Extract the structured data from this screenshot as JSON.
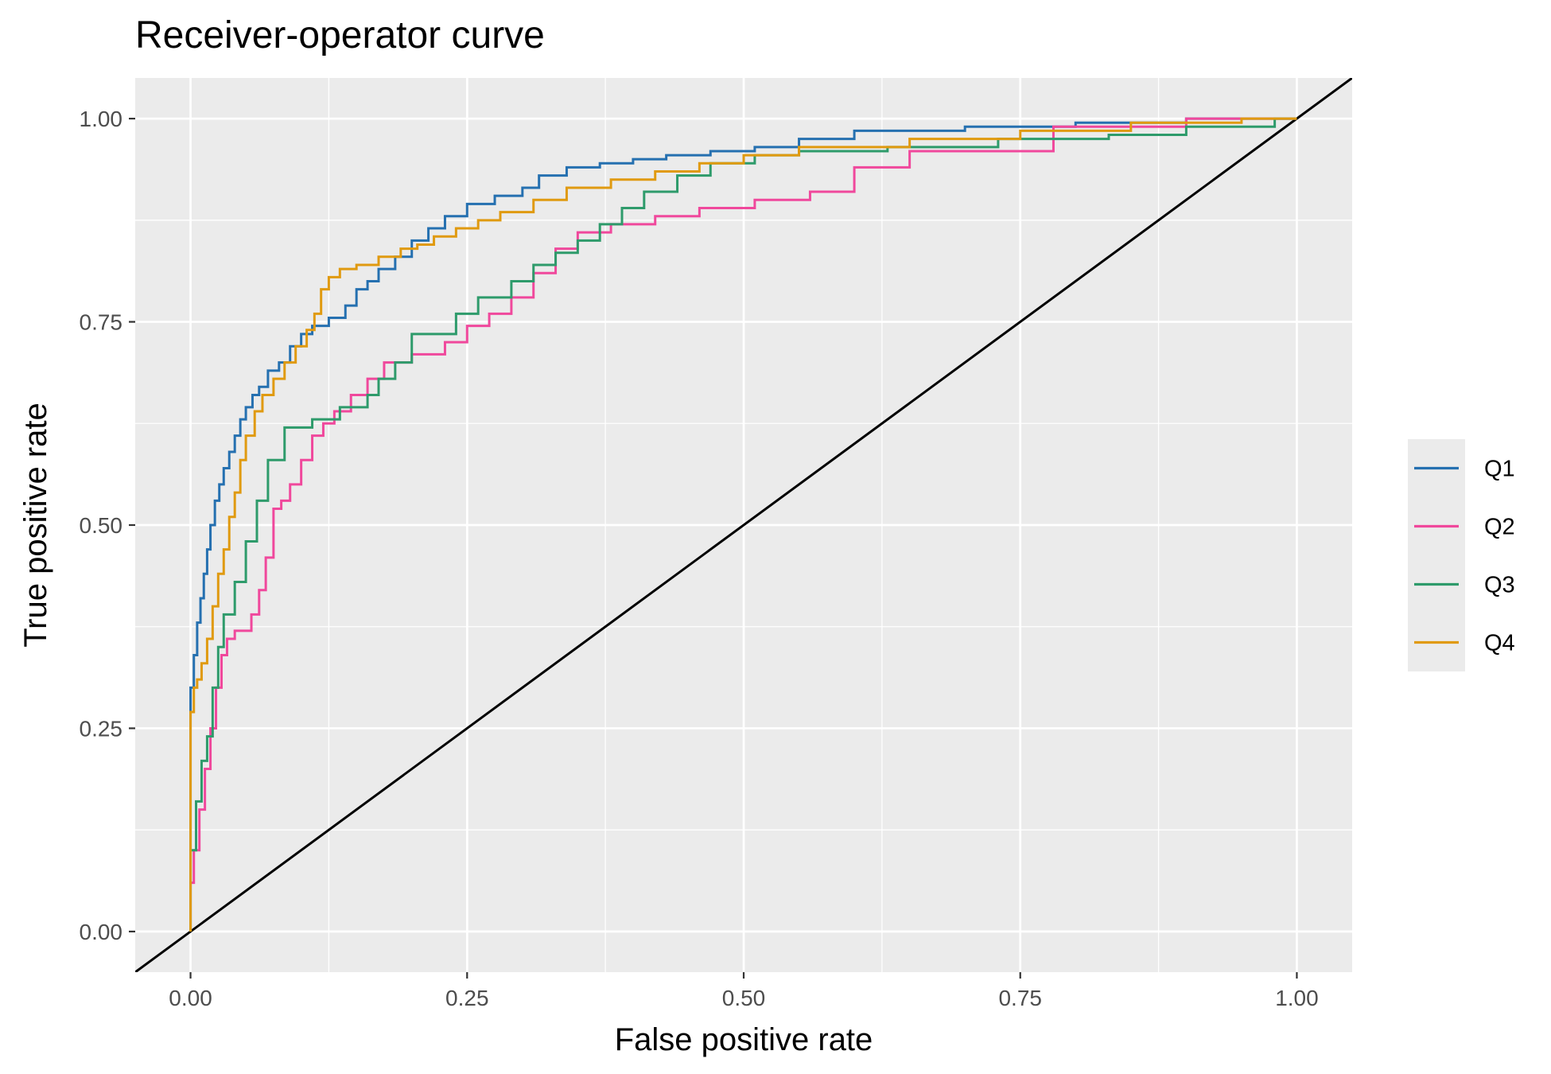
{
  "chart_data": {
    "type": "line",
    "title": "Receiver-operator curve",
    "xlabel": "False positive rate",
    "ylabel": "True positive rate",
    "xlim": [
      -0.05,
      1.05
    ],
    "ylim": [
      -0.05,
      1.05
    ],
    "x_ticks": [
      "0.00",
      "0.25",
      "0.50",
      "0.75",
      "1.00"
    ],
    "y_ticks": [
      "0.00",
      "0.25",
      "0.50",
      "0.75",
      "1.00"
    ],
    "x_tick_values": [
      0,
      0.25,
      0.5,
      0.75,
      1.0
    ],
    "y_tick_values": [
      0,
      0.25,
      0.5,
      0.75,
      1.0
    ],
    "grid": true,
    "panel_background": "#EBEBEB",
    "legend_position": "right",
    "reference_line": {
      "x": [
        0,
        1
      ],
      "y": [
        0,
        1
      ],
      "color": "#000000"
    },
    "series": [
      {
        "name": "Q1",
        "color": "#2570B0",
        "x": [
          0.0,
          0.0,
          0.003,
          0.003,
          0.006,
          0.006,
          0.009,
          0.009,
          0.012,
          0.012,
          0.015,
          0.015,
          0.018,
          0.018,
          0.022,
          0.022,
          0.026,
          0.026,
          0.03,
          0.03,
          0.035,
          0.035,
          0.04,
          0.04,
          0.045,
          0.045,
          0.05,
          0.05,
          0.056,
          0.056,
          0.062,
          0.062,
          0.07,
          0.07,
          0.08,
          0.08,
          0.09,
          0.09,
          0.1,
          0.1,
          0.11,
          0.11,
          0.125,
          0.125,
          0.14,
          0.14,
          0.15,
          0.15,
          0.16,
          0.16,
          0.17,
          0.17,
          0.185,
          0.185,
          0.2,
          0.2,
          0.215,
          0.215,
          0.23,
          0.23,
          0.25,
          0.25,
          0.275,
          0.275,
          0.3,
          0.3,
          0.315,
          0.315,
          0.34,
          0.34,
          0.37,
          0.37,
          0.4,
          0.4,
          0.43,
          0.43,
          0.47,
          0.47,
          0.51,
          0.51,
          0.55,
          0.55,
          0.6,
          0.6,
          0.7,
          0.7,
          0.8,
          0.8,
          0.9,
          0.9,
          1.0
        ],
        "y": [
          0.0,
          0.3,
          0.3,
          0.34,
          0.34,
          0.38,
          0.38,
          0.41,
          0.41,
          0.44,
          0.44,
          0.47,
          0.47,
          0.5,
          0.5,
          0.53,
          0.53,
          0.55,
          0.55,
          0.57,
          0.57,
          0.59,
          0.59,
          0.61,
          0.61,
          0.63,
          0.63,
          0.645,
          0.645,
          0.66,
          0.66,
          0.67,
          0.67,
          0.69,
          0.69,
          0.7,
          0.7,
          0.72,
          0.72,
          0.735,
          0.735,
          0.745,
          0.745,
          0.755,
          0.755,
          0.77,
          0.77,
          0.79,
          0.79,
          0.8,
          0.8,
          0.815,
          0.815,
          0.83,
          0.83,
          0.85,
          0.85,
          0.865,
          0.865,
          0.88,
          0.88,
          0.895,
          0.895,
          0.905,
          0.905,
          0.915,
          0.915,
          0.93,
          0.93,
          0.94,
          0.94,
          0.945,
          0.945,
          0.95,
          0.95,
          0.955,
          0.955,
          0.96,
          0.96,
          0.965,
          0.965,
          0.975,
          0.975,
          0.985,
          0.985,
          0.99,
          0.99,
          0.995,
          0.995,
          1.0,
          1.0
        ]
      },
      {
        "name": "Q2",
        "color": "#F0489C",
        "x": [
          0.0,
          0.0,
          0.003,
          0.003,
          0.008,
          0.008,
          0.013,
          0.013,
          0.018,
          0.018,
          0.023,
          0.023,
          0.028,
          0.028,
          0.033,
          0.033,
          0.04,
          0.04,
          0.055,
          0.055,
          0.062,
          0.062,
          0.068,
          0.068,
          0.075,
          0.075,
          0.082,
          0.082,
          0.09,
          0.09,
          0.1,
          0.1,
          0.11,
          0.11,
          0.12,
          0.12,
          0.13,
          0.13,
          0.145,
          0.145,
          0.16,
          0.16,
          0.175,
          0.175,
          0.2,
          0.2,
          0.23,
          0.23,
          0.25,
          0.25,
          0.27,
          0.27,
          0.29,
          0.29,
          0.31,
          0.31,
          0.33,
          0.33,
          0.35,
          0.35,
          0.38,
          0.38,
          0.42,
          0.42,
          0.46,
          0.46,
          0.51,
          0.51,
          0.56,
          0.56,
          0.6,
          0.6,
          0.65,
          0.65,
          0.78,
          0.78,
          0.9,
          0.9,
          1.0
        ],
        "y": [
          0.0,
          0.06,
          0.06,
          0.1,
          0.1,
          0.15,
          0.15,
          0.2,
          0.2,
          0.25,
          0.25,
          0.3,
          0.3,
          0.34,
          0.34,
          0.36,
          0.36,
          0.37,
          0.37,
          0.39,
          0.39,
          0.42,
          0.42,
          0.46,
          0.46,
          0.52,
          0.52,
          0.53,
          0.53,
          0.55,
          0.55,
          0.58,
          0.58,
          0.61,
          0.61,
          0.625,
          0.625,
          0.64,
          0.64,
          0.66,
          0.66,
          0.68,
          0.68,
          0.7,
          0.7,
          0.71,
          0.71,
          0.725,
          0.725,
          0.745,
          0.745,
          0.76,
          0.76,
          0.78,
          0.78,
          0.81,
          0.81,
          0.84,
          0.84,
          0.86,
          0.86,
          0.87,
          0.87,
          0.88,
          0.88,
          0.89,
          0.89,
          0.9,
          0.9,
          0.91,
          0.91,
          0.94,
          0.94,
          0.96,
          0.96,
          0.99,
          0.99,
          1.0,
          1.0
        ]
      },
      {
        "name": "Q3",
        "color": "#2E9B6B",
        "x": [
          0.0,
          0.0,
          0.005,
          0.005,
          0.01,
          0.01,
          0.015,
          0.015,
          0.02,
          0.02,
          0.025,
          0.025,
          0.03,
          0.03,
          0.04,
          0.04,
          0.05,
          0.05,
          0.06,
          0.06,
          0.07,
          0.07,
          0.085,
          0.085,
          0.11,
          0.11,
          0.135,
          0.135,
          0.16,
          0.16,
          0.17,
          0.17,
          0.185,
          0.185,
          0.2,
          0.2,
          0.24,
          0.24,
          0.26,
          0.26,
          0.29,
          0.29,
          0.31,
          0.31,
          0.33,
          0.33,
          0.35,
          0.35,
          0.37,
          0.37,
          0.39,
          0.39,
          0.41,
          0.41,
          0.44,
          0.44,
          0.47,
          0.47,
          0.51,
          0.51,
          0.55,
          0.55,
          0.63,
          0.63,
          0.73,
          0.73,
          0.83,
          0.83,
          0.9,
          0.9,
          0.98,
          0.98,
          1.0
        ],
        "y": [
          0.0,
          0.1,
          0.1,
          0.16,
          0.16,
          0.21,
          0.21,
          0.24,
          0.24,
          0.3,
          0.3,
          0.35,
          0.35,
          0.39,
          0.39,
          0.43,
          0.43,
          0.48,
          0.48,
          0.53,
          0.53,
          0.58,
          0.58,
          0.62,
          0.62,
          0.63,
          0.63,
          0.645,
          0.645,
          0.66,
          0.66,
          0.68,
          0.68,
          0.7,
          0.7,
          0.735,
          0.735,
          0.76,
          0.76,
          0.78,
          0.78,
          0.8,
          0.8,
          0.82,
          0.82,
          0.835,
          0.835,
          0.85,
          0.85,
          0.87,
          0.87,
          0.89,
          0.89,
          0.91,
          0.91,
          0.93,
          0.93,
          0.945,
          0.945,
          0.955,
          0.955,
          0.96,
          0.96,
          0.965,
          0.965,
          0.975,
          0.975,
          0.98,
          0.98,
          0.99,
          0.99,
          1.0,
          1.0
        ]
      },
      {
        "name": "Q4",
        "color": "#E09A10",
        "x": [
          0.0,
          0.0,
          0.003,
          0.003,
          0.006,
          0.006,
          0.01,
          0.01,
          0.015,
          0.015,
          0.02,
          0.02,
          0.025,
          0.025,
          0.03,
          0.03,
          0.035,
          0.035,
          0.04,
          0.04,
          0.045,
          0.045,
          0.05,
          0.05,
          0.058,
          0.058,
          0.065,
          0.065,
          0.075,
          0.075,
          0.085,
          0.085,
          0.095,
          0.095,
          0.105,
          0.105,
          0.112,
          0.112,
          0.118,
          0.118,
          0.125,
          0.125,
          0.135,
          0.135,
          0.15,
          0.15,
          0.17,
          0.17,
          0.19,
          0.19,
          0.205,
          0.205,
          0.22,
          0.22,
          0.24,
          0.24,
          0.26,
          0.26,
          0.28,
          0.28,
          0.31,
          0.31,
          0.34,
          0.34,
          0.38,
          0.38,
          0.42,
          0.42,
          0.46,
          0.46,
          0.5,
          0.5,
          0.55,
          0.55,
          0.65,
          0.65,
          0.75,
          0.75,
          0.85,
          0.85,
          0.95,
          0.95,
          1.0
        ],
        "y": [
          0.0,
          0.27,
          0.27,
          0.3,
          0.3,
          0.31,
          0.31,
          0.33,
          0.33,
          0.36,
          0.36,
          0.4,
          0.4,
          0.44,
          0.44,
          0.47,
          0.47,
          0.51,
          0.51,
          0.54,
          0.54,
          0.58,
          0.58,
          0.61,
          0.61,
          0.64,
          0.64,
          0.66,
          0.66,
          0.68,
          0.68,
          0.7,
          0.7,
          0.72,
          0.72,
          0.74,
          0.74,
          0.76,
          0.76,
          0.79,
          0.79,
          0.805,
          0.805,
          0.815,
          0.815,
          0.82,
          0.82,
          0.83,
          0.83,
          0.84,
          0.84,
          0.845,
          0.845,
          0.855,
          0.855,
          0.865,
          0.865,
          0.875,
          0.875,
          0.885,
          0.885,
          0.9,
          0.9,
          0.915,
          0.915,
          0.925,
          0.925,
          0.935,
          0.935,
          0.945,
          0.945,
          0.955,
          0.955,
          0.965,
          0.965,
          0.975,
          0.975,
          0.985,
          0.985,
          0.995,
          0.995,
          1.0,
          1.0
        ]
      }
    ]
  }
}
